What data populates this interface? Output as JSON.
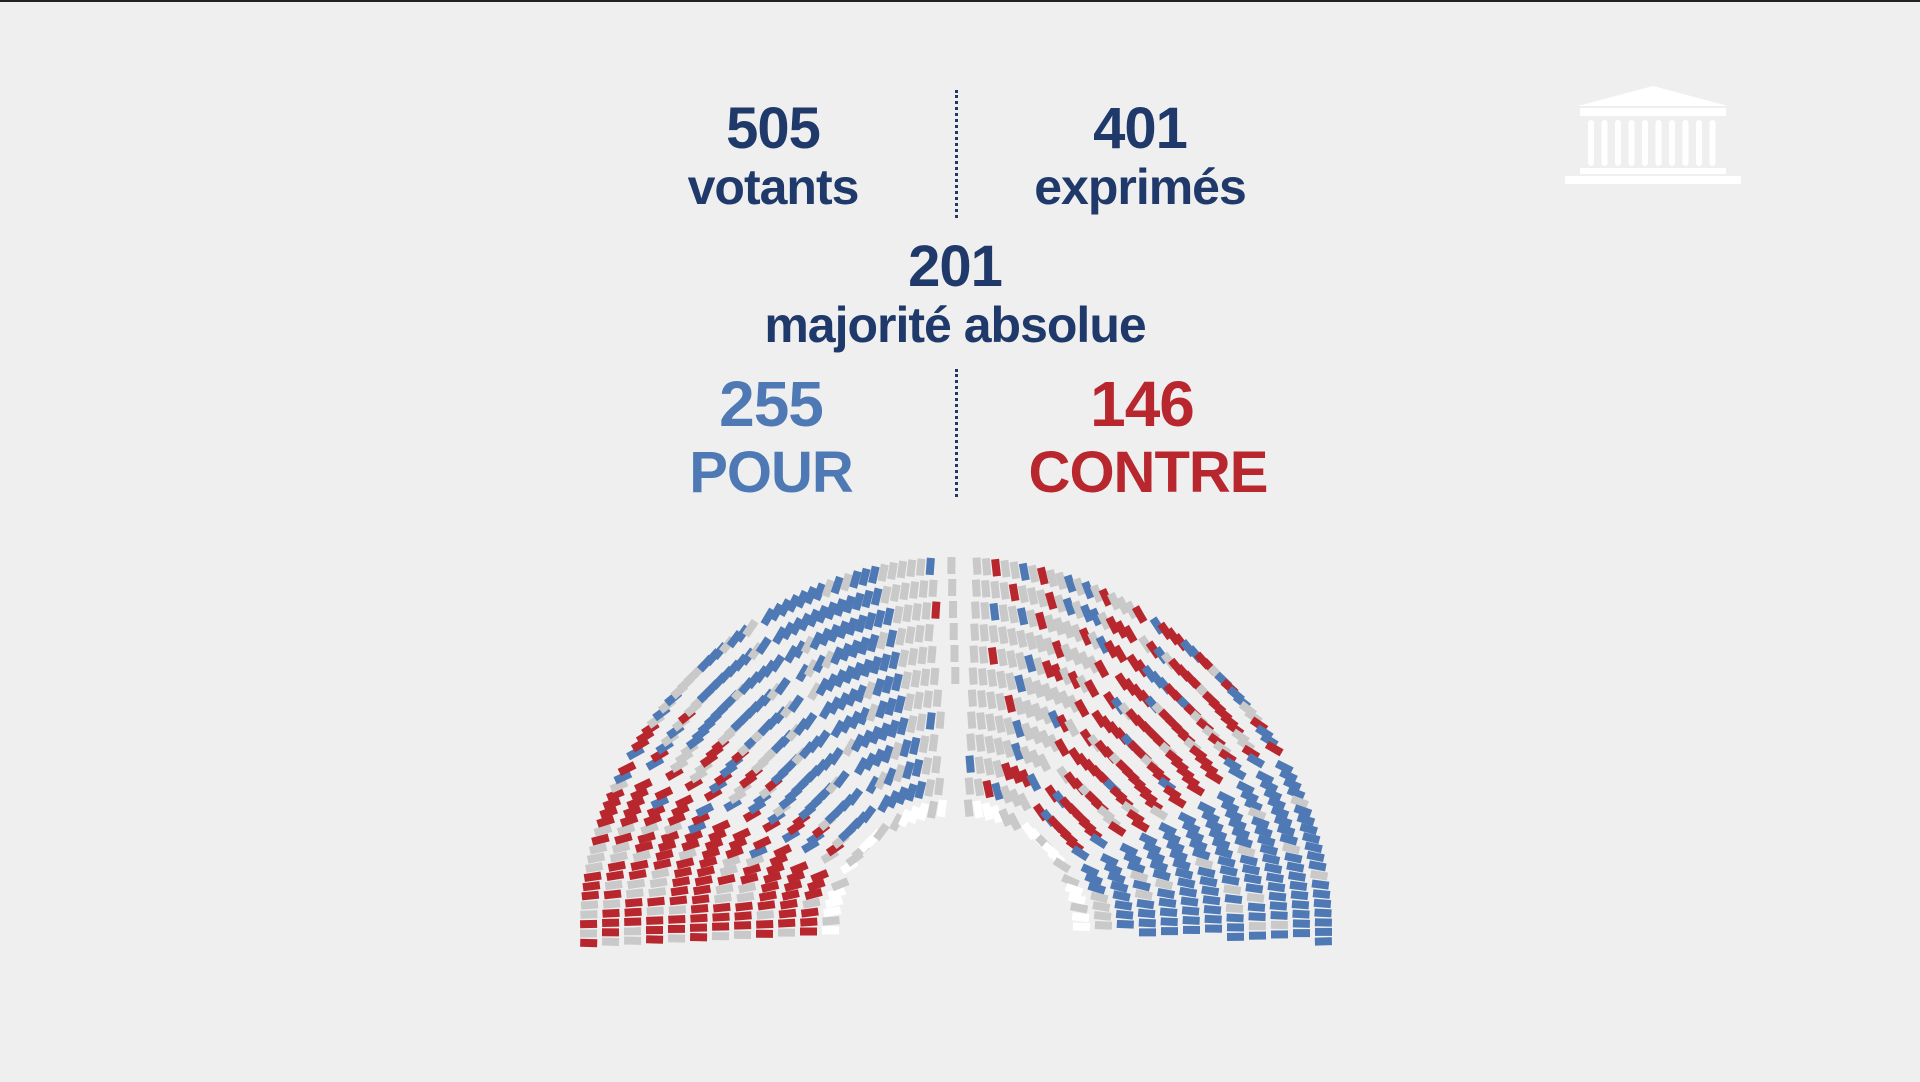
{
  "stats": {
    "voters": {
      "count": 505,
      "label": "votants"
    },
    "expressed": {
      "count": 401,
      "label": "exprimés"
    },
    "majority": {
      "count": 201,
      "label": "majorité absolue"
    },
    "for": {
      "count": 255,
      "label": "POUR"
    },
    "against": {
      "count": 146,
      "label": "CONTRE"
    }
  }
}
